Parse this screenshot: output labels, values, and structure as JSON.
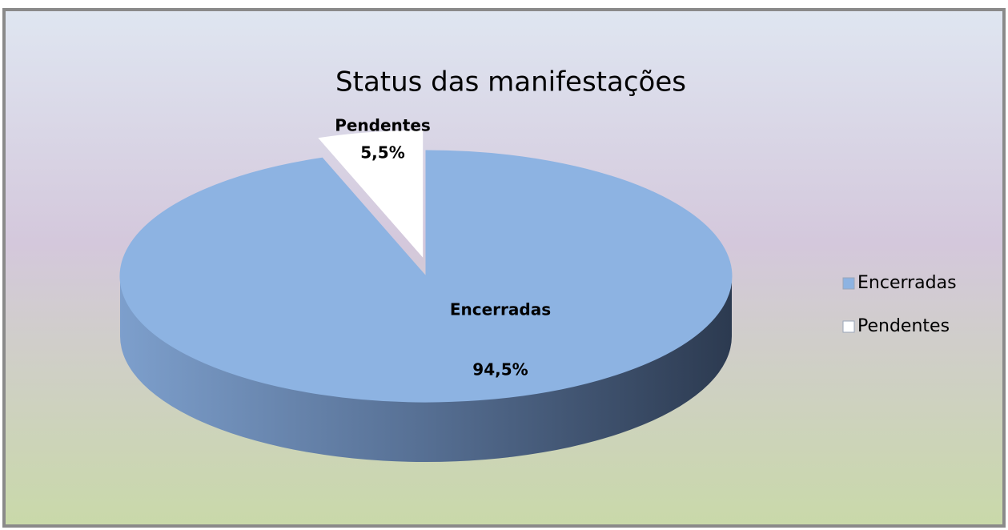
{
  "chart_data": {
    "type": "pie",
    "title": "Status das manifestações",
    "categories": [
      "Encerradas",
      "Pendentes"
    ],
    "values": [
      94.5,
      5.5
    ],
    "value_labels": [
      "94,5%",
      "5,5%"
    ],
    "colors": [
      "#8db3e2",
      "#ffffff"
    ],
    "legend": "right"
  }
}
